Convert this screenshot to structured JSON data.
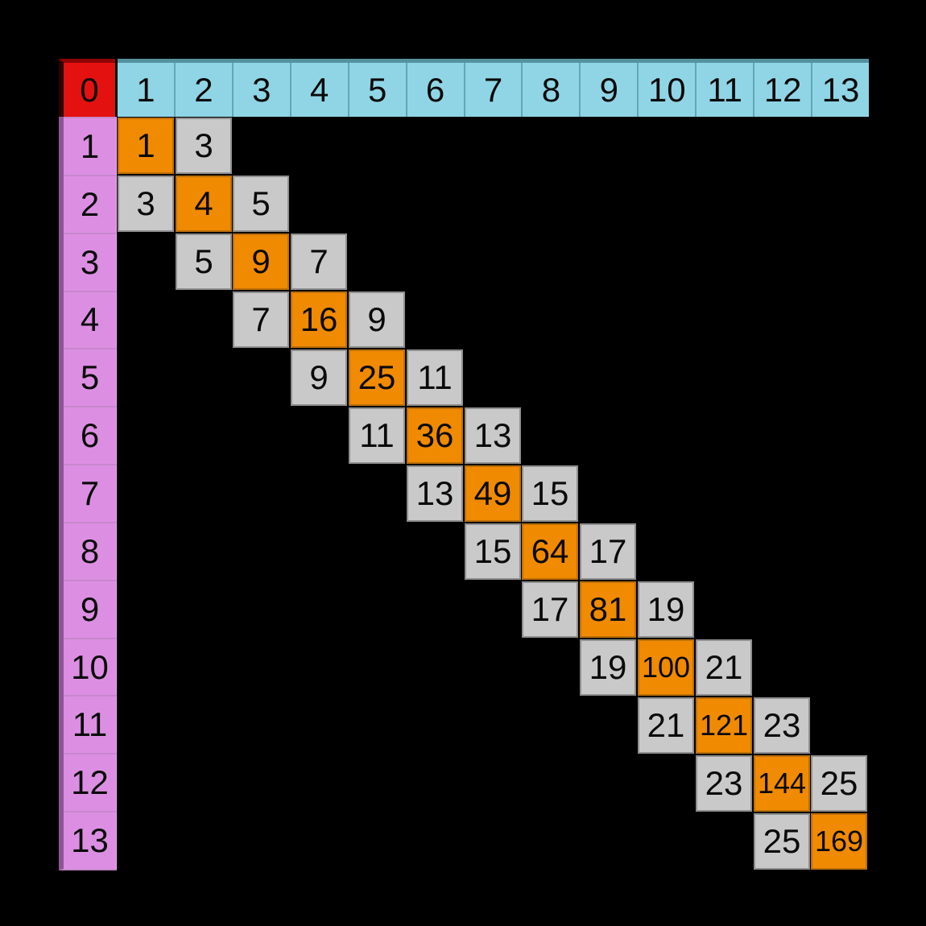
{
  "table": {
    "corner_label": "0",
    "column_headers": [
      "1",
      "2",
      "3",
      "4",
      "5",
      "6",
      "7",
      "8",
      "9",
      "10",
      "11",
      "12",
      "13"
    ],
    "row_headers": [
      "1",
      "2",
      "3",
      "4",
      "5",
      "6",
      "7",
      "8",
      "9",
      "10",
      "11",
      "12",
      "13"
    ],
    "cells": [
      {
        "row": 1,
        "col": 1,
        "value": "1",
        "kind": "square"
      },
      {
        "row": 1,
        "col": 2,
        "value": "3",
        "kind": "odd"
      },
      {
        "row": 2,
        "col": 1,
        "value": "3",
        "kind": "odd"
      },
      {
        "row": 2,
        "col": 2,
        "value": "4",
        "kind": "square"
      },
      {
        "row": 2,
        "col": 3,
        "value": "5",
        "kind": "odd"
      },
      {
        "row": 3,
        "col": 2,
        "value": "5",
        "kind": "odd"
      },
      {
        "row": 3,
        "col": 3,
        "value": "9",
        "kind": "square"
      },
      {
        "row": 3,
        "col": 4,
        "value": "7",
        "kind": "odd"
      },
      {
        "row": 4,
        "col": 3,
        "value": "7",
        "kind": "odd"
      },
      {
        "row": 4,
        "col": 4,
        "value": "16",
        "kind": "square"
      },
      {
        "row": 4,
        "col": 5,
        "value": "9",
        "kind": "odd"
      },
      {
        "row": 5,
        "col": 4,
        "value": "9",
        "kind": "odd"
      },
      {
        "row": 5,
        "col": 5,
        "value": "25",
        "kind": "square"
      },
      {
        "row": 5,
        "col": 6,
        "value": "11",
        "kind": "odd"
      },
      {
        "row": 6,
        "col": 5,
        "value": "11",
        "kind": "odd"
      },
      {
        "row": 6,
        "col": 6,
        "value": "36",
        "kind": "square"
      },
      {
        "row": 6,
        "col": 7,
        "value": "13",
        "kind": "odd"
      },
      {
        "row": 7,
        "col": 6,
        "value": "13",
        "kind": "odd"
      },
      {
        "row": 7,
        "col": 7,
        "value": "49",
        "kind": "square"
      },
      {
        "row": 7,
        "col": 8,
        "value": "15",
        "kind": "odd"
      },
      {
        "row": 8,
        "col": 7,
        "value": "15",
        "kind": "odd"
      },
      {
        "row": 8,
        "col": 8,
        "value": "64",
        "kind": "square"
      },
      {
        "row": 8,
        "col": 9,
        "value": "17",
        "kind": "odd"
      },
      {
        "row": 9,
        "col": 8,
        "value": "17",
        "kind": "odd"
      },
      {
        "row": 9,
        "col": 9,
        "value": "81",
        "kind": "square"
      },
      {
        "row": 9,
        "col": 10,
        "value": "19",
        "kind": "odd"
      },
      {
        "row": 10,
        "col": 9,
        "value": "19",
        "kind": "odd"
      },
      {
        "row": 10,
        "col": 10,
        "value": "100",
        "kind": "square"
      },
      {
        "row": 10,
        "col": 11,
        "value": "21",
        "kind": "odd"
      },
      {
        "row": 11,
        "col": 10,
        "value": "21",
        "kind": "odd"
      },
      {
        "row": 11,
        "col": 11,
        "value": "121",
        "kind": "square"
      },
      {
        "row": 11,
        "col": 12,
        "value": "23",
        "kind": "odd"
      },
      {
        "row": 12,
        "col": 11,
        "value": "23",
        "kind": "odd"
      },
      {
        "row": 12,
        "col": 12,
        "value": "144",
        "kind": "square"
      },
      {
        "row": 12,
        "col": 13,
        "value": "25",
        "kind": "odd"
      },
      {
        "row": 13,
        "col": 12,
        "value": "25",
        "kind": "odd"
      },
      {
        "row": 13,
        "col": 13,
        "value": "169",
        "kind": "square"
      }
    ]
  },
  "colors": {
    "background": "#000000",
    "text": "#0a0a0a",
    "corner_fill": "#e41111",
    "corner_top": "#8e0404",
    "corner_left": "#2a0206",
    "header_fill": "#90d5e5",
    "header_top": "#55929f",
    "header_separator": "#62a6b8",
    "row_header_fill": "#dc8fe2",
    "row_header_left": "#8e5596",
    "row_header_separator": "#c787cd",
    "row_header_edge": "#efadf2",
    "square_fill": "#f08a00",
    "square_border": "#bd6f08",
    "odd_fill": "#c9c9c9",
    "odd_border": "#8f8f8f"
  }
}
